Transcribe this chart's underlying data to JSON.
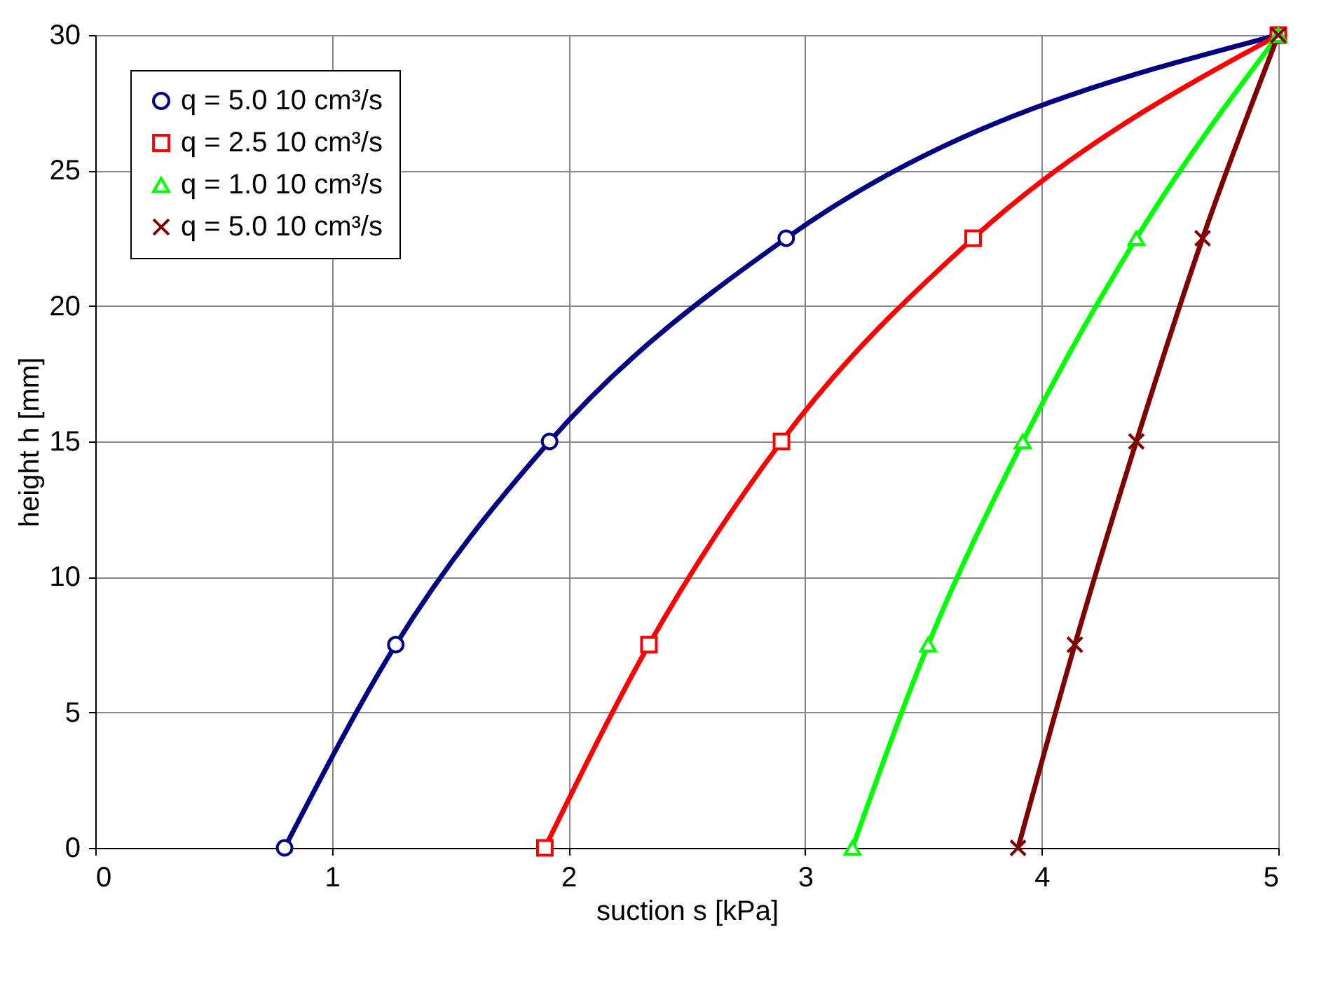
{
  "chart_data": {
    "type": "line",
    "xlabel": "suction s [kPa]",
    "ylabel": "height h [mm]",
    "xlim": [
      0,
      5
    ],
    "xticks": [
      0,
      1,
      2,
      3,
      4,
      5
    ],
    "ylim": [
      0,
      30
    ],
    "yticks": [
      0,
      5,
      10,
      15,
      20,
      25,
      30
    ],
    "grid": true,
    "legend": "top left",
    "line_style": "solid",
    "series": [
      {
        "name": "q = 5.0 10 cm³/s",
        "color": "#000080",
        "marker": "circle",
        "x": [
          0.8,
          1.27,
          1.92,
          2.92,
          5.0
        ],
        "values": [
          0,
          7.5,
          15,
          22.5,
          30
        ]
      },
      {
        "name": "q = 2.5 10 cm³/s",
        "color": "#ff0000",
        "marker": "square",
        "x": [
          1.9,
          2.34,
          2.9,
          3.71,
          5.0
        ],
        "values": [
          0,
          7.5,
          15,
          22.5,
          30
        ]
      },
      {
        "name": "q = 1.0 10 cm³/s",
        "color": "#00ff00",
        "marker": "triangle",
        "x": [
          3.2,
          3.52,
          3.92,
          4.4,
          5.0
        ],
        "values": [
          0,
          7.5,
          15,
          22.5,
          30
        ]
      },
      {
        "name": "q = 5.0 10 cm³/s ",
        "color": "#800000",
        "marker": "cross",
        "x": [
          3.9,
          4.14,
          4.4,
          4.68,
          5.0
        ],
        "values": [
          0,
          7.5,
          15,
          22.5,
          30
        ]
      }
    ]
  }
}
